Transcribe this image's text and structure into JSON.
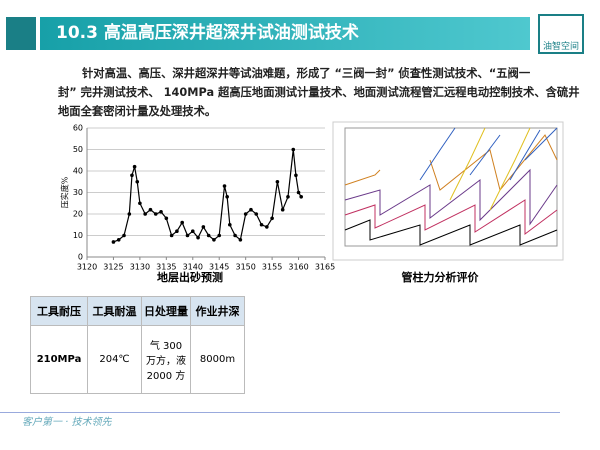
{
  "header": {
    "title": "10.3  高温高压深井超深井试油测试技术",
    "logo": "油智空间"
  },
  "body": {
    "lines": [
      "针对高温、高压、深井超深井等试油难题，形成了 “三阀一封” 侦查性测试技术、“五阀一",
      "封” 完井测试技术、 140MPa 超高压地面测试计量技术、地面测试流程管汇远程电动控制技术、含硫井",
      "地面全套密闭计量及处理技术。"
    ]
  },
  "left_chart": {
    "type": "line",
    "ylabel": "压实度%",
    "caption": "地层出砂预测",
    "xlim": [
      3120,
      3165
    ],
    "xticks": [
      3120,
      3125,
      3130,
      3135,
      3140,
      3145,
      3150,
      3155,
      3160,
      3165
    ],
    "ylim": [
      0,
      60
    ],
    "yticks": [
      0,
      10,
      20,
      30,
      40,
      50,
      60
    ],
    "x": [
      3125,
      3126,
      3127,
      3128,
      3128.5,
      3129,
      3129.5,
      3130,
      3131,
      3132,
      3133,
      3134,
      3135,
      3136,
      3137,
      3138,
      3139,
      3140,
      3141,
      3142,
      3143,
      3144,
      3145,
      3146,
      3146.5,
      3147,
      3148,
      3149,
      3150,
      3151,
      3152,
      3153,
      3154,
      3155,
      3156,
      3157,
      3158,
      3159,
      3159.5,
      3160,
      3160.5
    ],
    "values": [
      7,
      8,
      10,
      20,
      38,
      42,
      35,
      25,
      20,
      22,
      20,
      21,
      18,
      10,
      12,
      16,
      10,
      12,
      9,
      14,
      10,
      8,
      10,
      33,
      28,
      15,
      10,
      8,
      20,
      22,
      20,
      15,
      14,
      18,
      35,
      22,
      28,
      50,
      38,
      30,
      28
    ],
    "color": "#000000"
  },
  "right_figure": {
    "caption": "管柱力分析评价"
  },
  "table": {
    "header": [
      "工具耐压",
      "工具耐温",
      "日处理量",
      "作业井深"
    ],
    "rows": [
      [
        "210MPa",
        "204℃",
        "气  300 万方，液 2000 方",
        "8000m"
      ]
    ]
  },
  "footer": {
    "text": "客户第一 · 技术领先"
  }
}
